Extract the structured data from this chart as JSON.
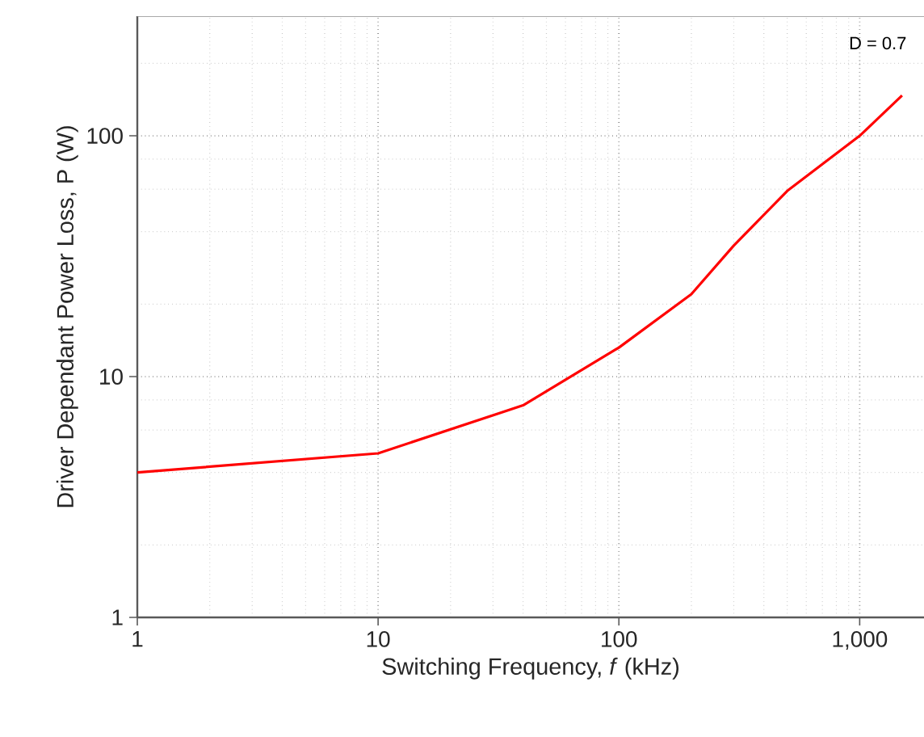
{
  "chart_data": {
    "type": "line",
    "xlabel": "Switching Frequency, *f* (kHz)",
    "ylabel": "Driver Dependant Power Loss, P (W)",
    "log": "xy",
    "grid": true,
    "xlim": [
      1,
      1850
    ],
    "ylim": [
      1,
      314
    ],
    "xticks": [
      1,
      10,
      100,
      {
        "value": 1000,
        "label": "1,000"
      }
    ],
    "yticks": [
      1,
      10,
      100
    ],
    "annotations": [
      "D = 0.7"
    ],
    "series": [
      {
        "color": "#ff0000",
        "x": [
          1,
          10,
          40,
          100,
          200,
          300,
          500,
          1000,
          1500
        ],
        "values": [
          4.0,
          4.8,
          7.6,
          13.2,
          22,
          35,
          59,
          100,
          147
        ]
      }
    ]
  }
}
